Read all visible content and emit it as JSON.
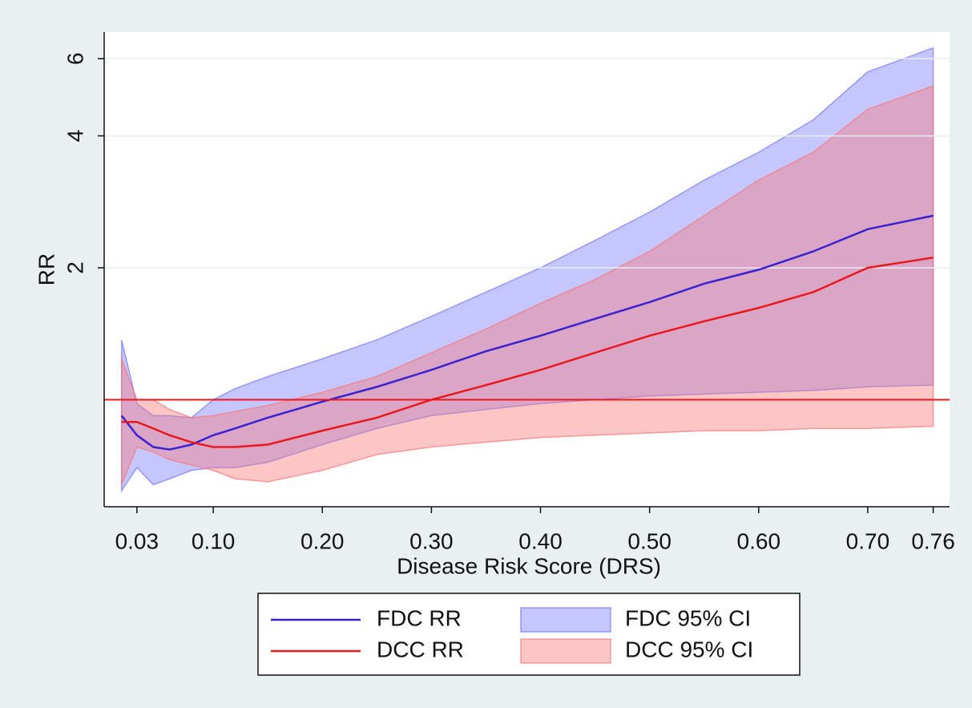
{
  "chart_data": {
    "type": "line",
    "x_label": "Disease Risk Score (DRS)",
    "y_label": "RR",
    "log_y": true,
    "grid": true,
    "legend": "bottom",
    "xlim": [
      0,
      0.775
    ],
    "ylim": [
      0.57,
      6.9
    ],
    "xticks": [
      0.03,
      {
        "value": 0.1,
        "label": "0.10"
      },
      {
        "value": 0.2,
        "label": "0.20"
      },
      {
        "value": 0.3,
        "label": "0.30"
      },
      {
        "value": 0.4,
        "label": "0.40"
      },
      {
        "value": 0.5,
        "label": "0.50"
      },
      {
        "value": 0.6,
        "label": "0.60"
      },
      {
        "value": 0.7,
        "label": "0.70"
      },
      0.76
    ],
    "yticks": [
      2,
      4,
      6
    ],
    "reference_line": 1,
    "reference_color": "#e8191e",
    "x": [
      0.016,
      0.03,
      0.045,
      0.06,
      0.08,
      0.1,
      0.12,
      0.15,
      0.2,
      0.25,
      0.3,
      0.35,
      0.4,
      0.45,
      0.5,
      0.55,
      0.6,
      0.65,
      0.7,
      0.76
    ],
    "series": [
      {
        "name": "FDC RR",
        "kind": "line",
        "color": "#3a22d0",
        "values": [
          0.92,
          0.83,
          0.78,
          0.77,
          0.79,
          0.83,
          0.86,
          0.91,
          0.99,
          1.07,
          1.17,
          1.29,
          1.4,
          1.53,
          1.67,
          1.84,
          1.98,
          2.18,
          2.45,
          2.63
        ]
      },
      {
        "name": "DCC RR",
        "kind": "line",
        "color": "#e8191e",
        "values": [
          0.89,
          0.89,
          0.86,
          0.83,
          0.8,
          0.78,
          0.78,
          0.79,
          0.85,
          0.91,
          1.0,
          1.08,
          1.17,
          1.28,
          1.4,
          1.51,
          1.62,
          1.76,
          2.0,
          2.11
        ]
      },
      {
        "name": "FDC 95% CI",
        "kind": "band",
        "color": "#7878ff",
        "upper": [
          1.37,
          0.98,
          0.92,
          0.92,
          0.91,
          1.0,
          1.06,
          1.13,
          1.24,
          1.37,
          1.55,
          1.76,
          2.0,
          2.31,
          2.68,
          3.17,
          3.67,
          4.35,
          5.6,
          6.35
        ],
        "lower": [
          0.62,
          0.7,
          0.64,
          0.66,
          0.69,
          0.7,
          0.7,
          0.72,
          0.79,
          0.86,
          0.92,
          0.95,
          0.98,
          1.0,
          1.02,
          1.03,
          1.04,
          1.05,
          1.07,
          1.08
        ]
      },
      {
        "name": "DCC 95% CI",
        "kind": "band",
        "color": "#f87878",
        "upper": [
          1.24,
          1.0,
          1.0,
          0.95,
          0.91,
          0.92,
          0.94,
          0.97,
          1.04,
          1.13,
          1.28,
          1.45,
          1.66,
          1.88,
          2.18,
          2.63,
          3.17,
          3.67,
          4.6,
          5.2
        ],
        "lower": [
          0.64,
          0.78,
          0.76,
          0.73,
          0.71,
          0.69,
          0.66,
          0.65,
          0.69,
          0.75,
          0.78,
          0.8,
          0.82,
          0.83,
          0.84,
          0.85,
          0.85,
          0.86,
          0.86,
          0.87
        ]
      }
    ]
  }
}
